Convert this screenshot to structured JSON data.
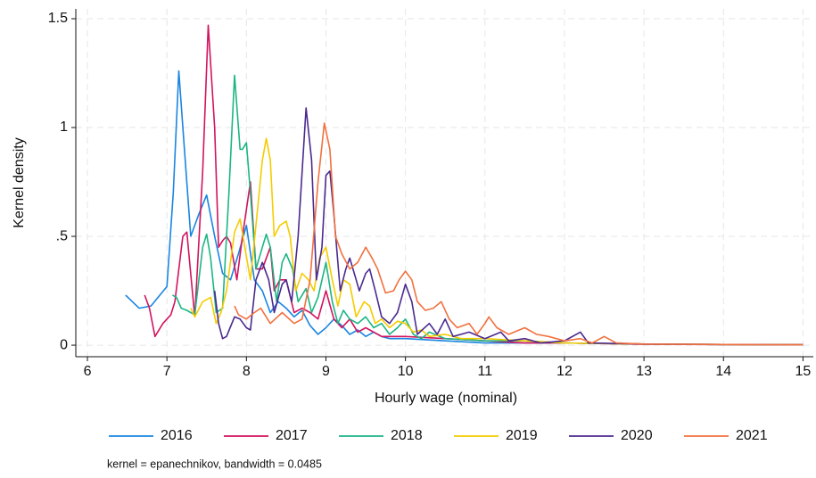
{
  "chart_data": {
    "type": "line",
    "x_label": "Hourly wage (nominal)",
    "y_label": "Kernel density",
    "note": "kernel = epanechnikov, bandwidth = 0.0485",
    "xlim": [
      5.854,
      15.13
    ],
    "ylim": [
      -0.053,
      1.545
    ],
    "xticks": [
      6,
      7,
      8,
      9,
      10,
      11,
      12,
      13,
      14,
      15
    ],
    "yticks": [
      0,
      {
        "value": 0.5,
        "label": ".5"
      },
      1,
      1.5
    ],
    "grid": true,
    "legend": "bottom",
    "series": [
      {
        "name": "2016",
        "color": "#1a85e0",
        "x": [
          6.48,
          6.65,
          6.8,
          7.0,
          7.08,
          7.15,
          7.22,
          7.3,
          7.4,
          7.5,
          7.6,
          7.7,
          7.8,
          7.9,
          8.0,
          8.1,
          8.2,
          8.3,
          8.4,
          8.5,
          8.6,
          8.7,
          8.8,
          8.9,
          9.0,
          9.1,
          9.2,
          9.3,
          9.4,
          9.5,
          9.6,
          9.7,
          9.8,
          9.9,
          10.0,
          10.5,
          11,
          11.5,
          12,
          13,
          14,
          15
        ],
        "values": [
          0.23,
          0.17,
          0.18,
          0.27,
          0.7,
          1.26,
          0.9,
          0.5,
          0.6,
          0.69,
          0.5,
          0.33,
          0.3,
          0.42,
          0.55,
          0.3,
          0.25,
          0.15,
          0.2,
          0.17,
          0.13,
          0.16,
          0.09,
          0.05,
          0.08,
          0.12,
          0.09,
          0.05,
          0.07,
          0.04,
          0.06,
          0.04,
          0.03,
          0.03,
          0.03,
          0.02,
          0.01,
          0.01,
          0.01,
          0.005,
          0.003,
          0.002
        ]
      },
      {
        "name": "2017",
        "color": "#d3135e",
        "x": [
          6.72,
          6.78,
          6.85,
          6.95,
          7.05,
          7.1,
          7.2,
          7.25,
          7.35,
          7.45,
          7.52,
          7.6,
          7.65,
          7.7,
          7.75,
          7.8,
          7.88,
          7.95,
          8.05,
          8.12,
          8.2,
          8.3,
          8.35,
          8.42,
          8.5,
          8.6,
          8.7,
          8.8,
          8.9,
          9.0,
          9.1,
          9.2,
          9.3,
          9.4,
          9.5,
          9.7,
          10.0,
          10.5,
          11,
          11.5,
          12,
          13,
          14,
          15
        ],
        "values": [
          0.23,
          0.17,
          0.04,
          0.1,
          0.14,
          0.2,
          0.5,
          0.52,
          0.13,
          0.8,
          1.47,
          1.0,
          0.45,
          0.48,
          0.5,
          0.47,
          0.3,
          0.5,
          0.75,
          0.35,
          0.35,
          0.45,
          0.25,
          0.3,
          0.3,
          0.15,
          0.17,
          0.15,
          0.12,
          0.25,
          0.12,
          0.08,
          0.12,
          0.06,
          0.08,
          0.04,
          0.04,
          0.03,
          0.02,
          0.01,
          0.01,
          0.004,
          0.003,
          0.002
        ]
      },
      {
        "name": "2018",
        "color": "#1cb584",
        "x": [
          7.07,
          7.12,
          7.18,
          7.25,
          7.3,
          7.35,
          7.45,
          7.5,
          7.55,
          7.62,
          7.7,
          7.78,
          7.85,
          7.92,
          7.95,
          8.0,
          8.05,
          8.12,
          8.2,
          8.25,
          8.3,
          8.38,
          8.45,
          8.5,
          8.58,
          8.65,
          8.75,
          8.82,
          8.9,
          9.0,
          9.08,
          9.15,
          9.22,
          9.3,
          9.4,
          9.5,
          9.6,
          9.7,
          9.8,
          9.9,
          10.0,
          10.1,
          10.2,
          10.3,
          10.5,
          11,
          11.5,
          12,
          13,
          14,
          15
        ],
        "values": [
          0.23,
          0.22,
          0.17,
          0.16,
          0.15,
          0.14,
          0.45,
          0.51,
          0.4,
          0.15,
          0.17,
          0.7,
          1.24,
          0.9,
          0.9,
          0.93,
          0.7,
          0.35,
          0.45,
          0.51,
          0.45,
          0.2,
          0.38,
          0.42,
          0.35,
          0.2,
          0.26,
          0.15,
          0.22,
          0.38,
          0.2,
          0.1,
          0.16,
          0.12,
          0.1,
          0.13,
          0.08,
          0.1,
          0.05,
          0.08,
          0.12,
          0.05,
          0.03,
          0.06,
          0.03,
          0.02,
          0.02,
          0.01,
          0.005,
          0.003,
          0.002
        ]
      },
      {
        "name": "2019",
        "color": "#f5cc00",
        "x": [
          7.3,
          7.35,
          7.45,
          7.55,
          7.62,
          7.68,
          7.75,
          7.85,
          7.92,
          7.98,
          8.05,
          8.12,
          8.2,
          8.25,
          8.3,
          8.35,
          8.42,
          8.5,
          8.55,
          8.62,
          8.7,
          8.78,
          8.85,
          8.92,
          9.0,
          9.08,
          9.15,
          9.22,
          9.3,
          9.38,
          9.48,
          9.55,
          9.62,
          9.7,
          9.8,
          9.9,
          10.0,
          10.1,
          10.2,
          10.3,
          10.5,
          10.7,
          11,
          11.5,
          12,
          13,
          14,
          15
        ],
        "values": [
          0.17,
          0.13,
          0.2,
          0.22,
          0.1,
          0.15,
          0.25,
          0.52,
          0.58,
          0.45,
          0.3,
          0.55,
          0.85,
          0.95,
          0.85,
          0.5,
          0.55,
          0.57,
          0.5,
          0.25,
          0.33,
          0.3,
          0.25,
          0.4,
          0.45,
          0.3,
          0.18,
          0.3,
          0.28,
          0.13,
          0.2,
          0.18,
          0.1,
          0.12,
          0.08,
          0.11,
          0.1,
          0.06,
          0.07,
          0.04,
          0.05,
          0.03,
          0.03,
          0.02,
          0.01,
          0.005,
          0.003,
          0.002
        ]
      },
      {
        "name": "2020",
        "color": "#4b2a8f",
        "x": [
          7.6,
          7.65,
          7.7,
          7.75,
          7.85,
          7.92,
          8.0,
          8.05,
          8.12,
          8.2,
          8.28,
          8.35,
          8.45,
          8.5,
          8.57,
          8.65,
          8.75,
          8.82,
          8.88,
          8.95,
          9.0,
          9.05,
          9.1,
          9.18,
          9.25,
          9.3,
          9.38,
          9.42,
          9.5,
          9.55,
          9.62,
          9.7,
          9.8,
          9.9,
          10.0,
          10.08,
          10.15,
          10.3,
          10.4,
          10.5,
          10.6,
          10.8,
          11.0,
          11.2,
          11.3,
          11.5,
          11.7,
          12.0,
          12.2,
          12.3,
          13,
          14,
          15
        ],
        "values": [
          0.25,
          0.1,
          0.03,
          0.04,
          0.13,
          0.12,
          0.08,
          0.07,
          0.3,
          0.38,
          0.3,
          0.15,
          0.28,
          0.3,
          0.2,
          0.5,
          1.09,
          0.85,
          0.3,
          0.45,
          0.78,
          0.8,
          0.6,
          0.25,
          0.35,
          0.4,
          0.3,
          0.25,
          0.33,
          0.35,
          0.25,
          0.13,
          0.1,
          0.15,
          0.28,
          0.2,
          0.05,
          0.1,
          0.05,
          0.12,
          0.04,
          0.06,
          0.03,
          0.06,
          0.02,
          0.03,
          0.01,
          0.02,
          0.06,
          0.01,
          0.005,
          0.003,
          0.002
        ]
      },
      {
        "name": "2021",
        "color": "#f2703f",
        "x": [
          7.85,
          7.9,
          8.0,
          8.1,
          8.18,
          8.3,
          8.45,
          8.6,
          8.7,
          8.8,
          8.9,
          8.98,
          9.05,
          9.12,
          9.2,
          9.3,
          9.4,
          9.5,
          9.58,
          9.65,
          9.75,
          9.85,
          9.92,
          10.0,
          10.08,
          10.15,
          10.25,
          10.35,
          10.45,
          10.55,
          10.65,
          10.8,
          10.9,
          11.0,
          11.05,
          11.15,
          11.3,
          11.5,
          11.65,
          11.8,
          12.0,
          12.2,
          12.35,
          12.5,
          12.65,
          13,
          14,
          15
        ],
        "values": [
          0.18,
          0.14,
          0.12,
          0.15,
          0.17,
          0.1,
          0.15,
          0.1,
          0.12,
          0.3,
          0.75,
          1.02,
          0.9,
          0.5,
          0.42,
          0.35,
          0.38,
          0.45,
          0.4,
          0.35,
          0.24,
          0.25,
          0.3,
          0.34,
          0.3,
          0.2,
          0.16,
          0.17,
          0.2,
          0.12,
          0.08,
          0.1,
          0.05,
          0.1,
          0.13,
          0.08,
          0.05,
          0.08,
          0.05,
          0.04,
          0.02,
          0.03,
          0.01,
          0.04,
          0.01,
          0.005,
          0.003,
          0.002
        ]
      }
    ]
  }
}
